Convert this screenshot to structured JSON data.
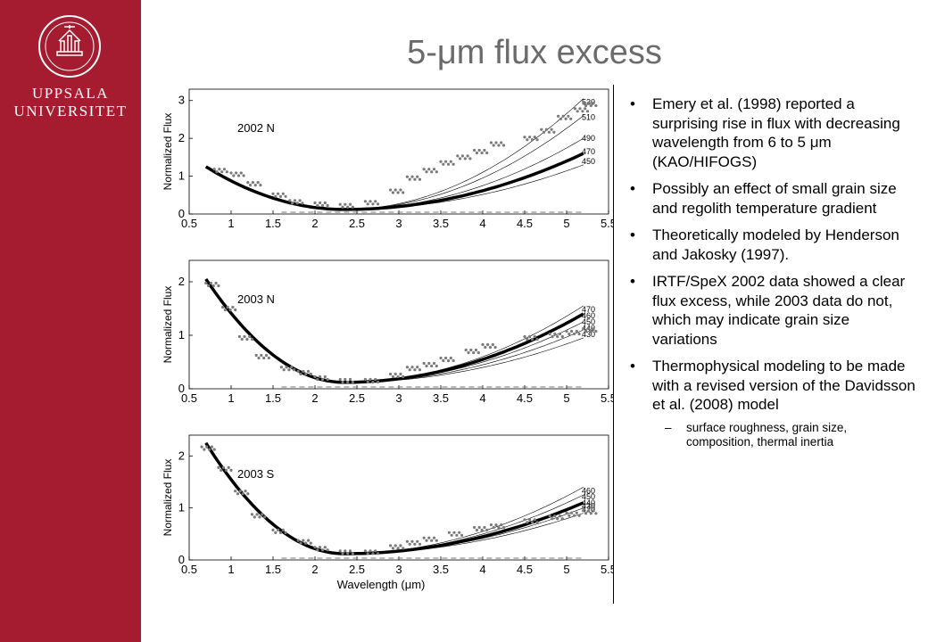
{
  "brand": {
    "line1": "UPPSALA",
    "line2": "UNIVERSITET",
    "seal_icon": "university-seal-icon"
  },
  "slide_title": "5-μm flux excess",
  "bullets": [
    "Emery et al. (1998) reported a surprising rise in flux with decreasing wavelength from 6 to 5 μm (KAO/HIFOGS)",
    "Possibly an effect of small grain size and regolith temperature gradient",
    "Theoretically modeled by Henderson and Jakosky (1997).",
    "IRTF/SpeX 2002 data showed a clear flux excess, while 2003 data do not, which may indicate grain size variations",
    "Thermophysical modeling to be made with a revised version of the Davidsson et al. (2008) model"
  ],
  "sub_bullets": [
    "surface roughness, grain size, composition, thermal inertia"
  ],
  "bullet_marker": "•",
  "sub_marker": "–",
  "colors": {
    "sidebar": "#a51c30",
    "title": "#6b6b6b"
  },
  "chart_data": [
    {
      "type": "line",
      "title": "2002 N",
      "xlabel": "",
      "ylabel": "Normalized Flux",
      "xlim": [
        0.5,
        5.5
      ],
      "ylim": [
        0,
        3.3
      ],
      "xticks": [
        "0.5",
        "1",
        "1.5",
        "2",
        "2.5",
        "3",
        "3.5",
        "4",
        "4.5",
        "5",
        "5.5"
      ],
      "yticks": [
        "0",
        "1",
        "2",
        "3"
      ],
      "model_labels": [
        "530",
        "510",
        "490",
        "470",
        "450"
      ],
      "model_end_values": [
        3.05,
        2.6,
        2.0,
        1.6,
        1.3
      ],
      "best_fit_label": "470",
      "observed_points": [
        [
          0.8,
          1.15
        ],
        [
          1.0,
          1.05
        ],
        [
          1.2,
          0.8
        ],
        [
          1.5,
          0.5
        ],
        [
          1.7,
          0.32
        ],
        [
          2.0,
          0.26
        ],
        [
          2.3,
          0.22
        ],
        [
          2.6,
          0.3
        ],
        [
          2.9,
          0.6
        ],
        [
          3.1,
          0.95
        ],
        [
          3.3,
          1.15
        ],
        [
          3.5,
          1.35
        ],
        [
          3.7,
          1.5
        ],
        [
          3.9,
          1.65
        ],
        [
          4.1,
          1.85
        ],
        [
          4.5,
          2.0
        ],
        [
          4.7,
          2.2
        ],
        [
          4.9,
          2.55
        ],
        [
          5.1,
          2.75
        ],
        [
          5.2,
          2.9
        ]
      ]
    },
    {
      "type": "line",
      "title": "2003 N",
      "xlabel": "",
      "ylabel": "Normalized Flux",
      "xlim": [
        0.5,
        5.5
      ],
      "ylim": [
        0,
        2.4
      ],
      "xticks": [
        "0.5",
        "1",
        "1.5",
        "2",
        "2.5",
        "3",
        "3.5",
        "4",
        "4.5",
        "5",
        "5.5"
      ],
      "yticks": [
        "0",
        "1",
        "2"
      ],
      "model_labels": [
        "470",
        "460",
        "450",
        "440",
        "430"
      ],
      "model_end_values": [
        1.55,
        1.4,
        1.25,
        1.1,
        0.95
      ],
      "best_fit_label": "460",
      "observed_points": [
        [
          0.7,
          1.95
        ],
        [
          0.9,
          1.5
        ],
        [
          1.1,
          0.95
        ],
        [
          1.3,
          0.6
        ],
        [
          1.6,
          0.38
        ],
        [
          1.8,
          0.3
        ],
        [
          2.0,
          0.2
        ],
        [
          2.3,
          0.15
        ],
        [
          2.6,
          0.15
        ],
        [
          2.9,
          0.25
        ],
        [
          3.1,
          0.38
        ],
        [
          3.3,
          0.45
        ],
        [
          3.5,
          0.55
        ],
        [
          3.8,
          0.7
        ],
        [
          4.0,
          0.8
        ],
        [
          4.5,
          0.95
        ],
        [
          4.8,
          1.0
        ],
        [
          5.0,
          1.05
        ],
        [
          5.2,
          1.1
        ]
      ]
    },
    {
      "type": "line",
      "title": "2003 S",
      "xlabel": "Wavelength (μm)",
      "ylabel": "Normalized Flux",
      "xlim": [
        0.5,
        5.5
      ],
      "ylim": [
        0,
        2.4
      ],
      "xticks": [
        "0.5",
        "1",
        "1.5",
        "2",
        "2.5",
        "3",
        "3.5",
        "4",
        "4.5",
        "5",
        "5.5"
      ],
      "yticks": [
        "0",
        "1",
        "2"
      ],
      "model_labels": [
        "460",
        "450",
        "440",
        "430",
        "420"
      ],
      "model_end_values": [
        1.4,
        1.25,
        1.1,
        1.0,
        0.9
      ],
      "best_fit_label": "440",
      "observed_points": [
        [
          0.65,
          2.15
        ],
        [
          0.85,
          1.75
        ],
        [
          1.05,
          1.3
        ],
        [
          1.25,
          0.85
        ],
        [
          1.5,
          0.55
        ],
        [
          1.8,
          0.35
        ],
        [
          2.0,
          0.22
        ],
        [
          2.3,
          0.15
        ],
        [
          2.6,
          0.15
        ],
        [
          2.9,
          0.25
        ],
        [
          3.1,
          0.33
        ],
        [
          3.3,
          0.4
        ],
        [
          3.6,
          0.5
        ],
        [
          3.9,
          0.6
        ],
        [
          4.1,
          0.65
        ],
        [
          4.5,
          0.75
        ],
        [
          4.8,
          0.82
        ],
        [
          5.0,
          0.88
        ],
        [
          5.2,
          0.92
        ]
      ]
    }
  ]
}
